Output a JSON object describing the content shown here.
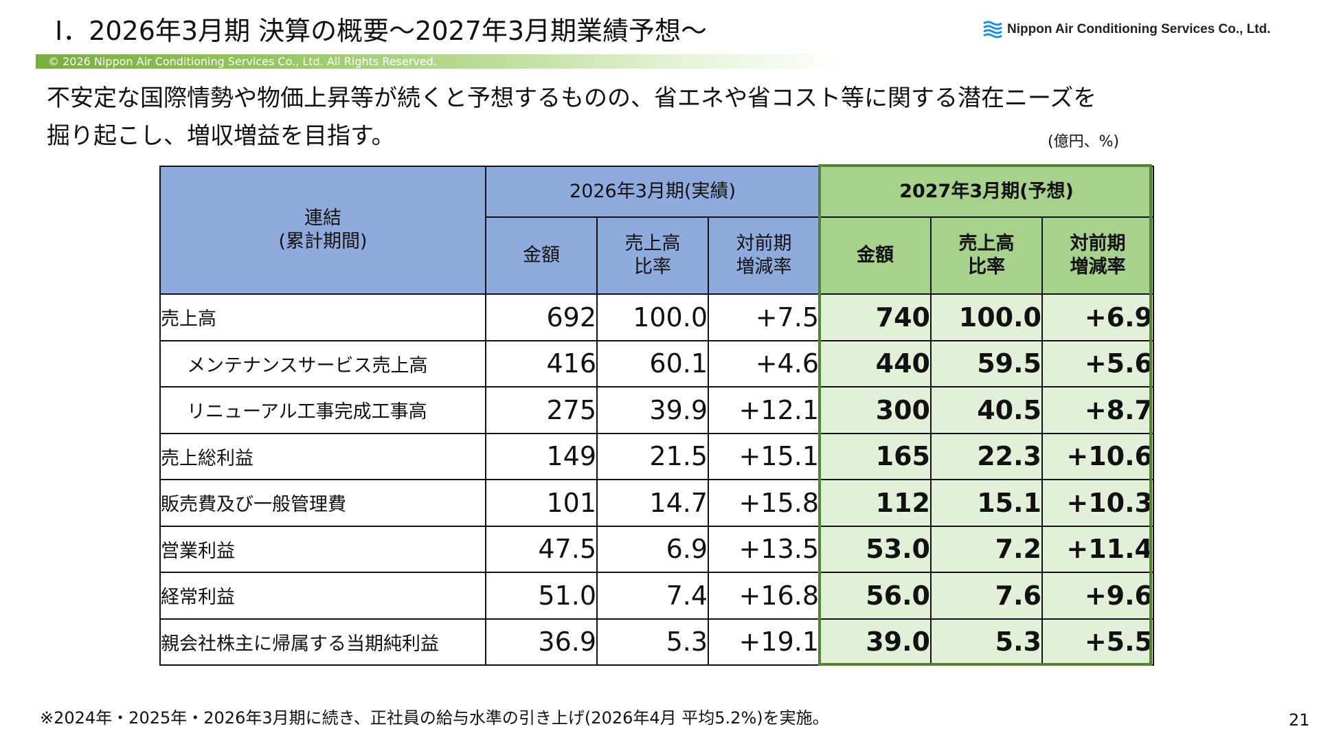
{
  "header": {
    "title": "Ⅰ．2026年3月期 決算の概要～2027年3月期業績予想～",
    "logo_text": "Nippon Air Conditioning Services Co., Ltd.",
    "copyright": "© 2026 Nippon Air Conditioning Services Co., Ltd. All Rights Reserved.",
    "accent_color": "#79ae3f"
  },
  "lead": {
    "line1": "不安定な国際情勢や物価上昇等が続くと予想するものの、省エネや省コスト等に関する潜在ニーズを",
    "line2": "掘り起こし、増収増益を目指す。"
  },
  "unit": "(億円、%)",
  "table": {
    "corner_line1": "連結",
    "corner_line2": "(累計期間)",
    "actual_header": "2026年3月期(実績)",
    "forecast_header": "2027年3月期(予想)",
    "sub_headers": {
      "amount": "金額",
      "ratio_line1": "売上高",
      "ratio_line2": "比率",
      "yoy_line1": "対前期",
      "yoy_line2": "増減率"
    },
    "rows": [
      {
        "label": "売上高",
        "a_amount": "692",
        "a_ratio": "100.0",
        "a_yoy": "+7.5",
        "f_amount": "740",
        "f_ratio": "100.0",
        "f_yoy": "+6.9"
      },
      {
        "label": "メンテナンスサービス売上高",
        "a_amount": "416",
        "a_ratio": "60.1",
        "a_yoy": "+4.6",
        "f_amount": "440",
        "f_ratio": "59.5",
        "f_yoy": "+5.6"
      },
      {
        "label": "リニューアル工事完成工事高",
        "a_amount": "275",
        "a_ratio": "39.9",
        "a_yoy": "+12.1",
        "f_amount": "300",
        "f_ratio": "40.5",
        "f_yoy": "+8.7"
      },
      {
        "label": "売上総利益",
        "a_amount": "149",
        "a_ratio": "21.5",
        "a_yoy": "+15.1",
        "f_amount": "165",
        "f_ratio": "22.3",
        "f_yoy": "+10.6"
      },
      {
        "label": "販売費及び一般管理費",
        "a_amount": "101",
        "a_ratio": "14.7",
        "a_yoy": "+15.8",
        "f_amount": "112",
        "f_ratio": "15.1",
        "f_yoy": "+10.3"
      },
      {
        "label": "営業利益",
        "a_amount": "47.5",
        "a_ratio": "6.9",
        "a_yoy": "+13.5",
        "f_amount": "53.0",
        "f_ratio": "7.2",
        "f_yoy": "+11.4"
      },
      {
        "label": "経常利益",
        "a_amount": "51.0",
        "a_ratio": "7.4",
        "a_yoy": "+16.8",
        "f_amount": "56.0",
        "f_ratio": "7.6",
        "f_yoy": "+9.6"
      },
      {
        "label": "親会社株主に帰属する当期純利益",
        "a_amount": "36.9",
        "a_ratio": "5.3",
        "a_yoy": "+19.1",
        "f_amount": "39.0",
        "f_ratio": "5.3",
        "f_yoy": "+5.5"
      }
    ],
    "colors": {
      "actual_header_bg": "#8faadc",
      "forecast_header_bg": "#a9d18e",
      "forecast_cell_bg": "#e2f0d9",
      "forecast_border": "#548235"
    }
  },
  "footnote": "※2024年・2025年・2026年3月期に続き、正社員の給与水準の引き上げ(2026年4月 平均5.2%)を実施。",
  "page_number": "21"
}
